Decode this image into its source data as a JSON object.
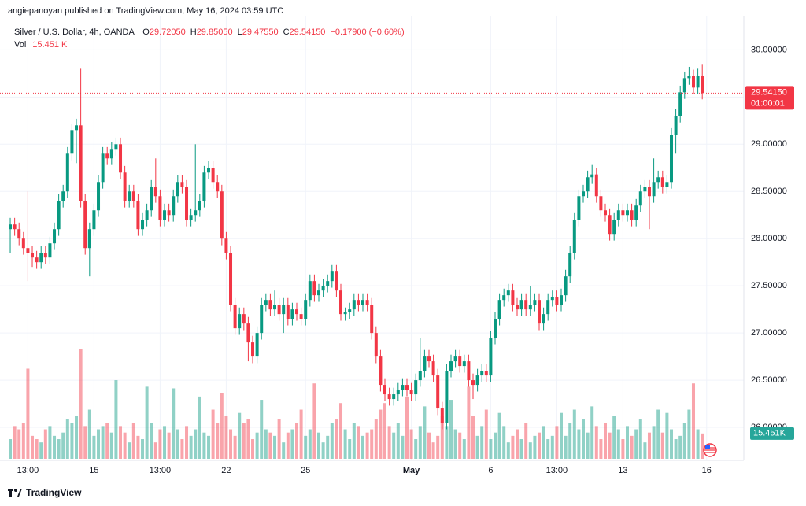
{
  "header": {
    "byline": "angiepanoyan published on TradingView.com, May 16, 2024 03:59 UTC",
    "symbol": "Silver / U.S. Dollar, 4h, OANDA",
    "ohlc": [
      {
        "key": "O",
        "value": "29.72050"
      },
      {
        "key": "H",
        "value": "29.85050"
      },
      {
        "key": "L",
        "value": "29.47550"
      },
      {
        "key": "C",
        "value": "29.54150"
      }
    ],
    "change": "−0.17900 (−0.60%)",
    "vol_label": "Vol",
    "vol_value": "15.451 K"
  },
  "chart_data": {
    "type": "candlestick",
    "up_color": "#089981",
    "down_color": "#f23645",
    "grid": true,
    "open": [
      28.1,
      28.15,
      28.1,
      28.0,
      27.9,
      27.85,
      27.8,
      27.75,
      27.85,
      27.8,
      27.95,
      28.1,
      28.4,
      28.5,
      28.9,
      29.15,
      29.2,
      28.4,
      27.9,
      28.1,
      28.3,
      28.6,
      28.9,
      28.85,
      28.95,
      29.0,
      28.7,
      28.4,
      28.5,
      28.4,
      28.1,
      28.2,
      28.3,
      28.55,
      28.45,
      28.2,
      28.3,
      28.25,
      28.45,
      28.6,
      28.55,
      28.2,
      28.25,
      28.3,
      28.4,
      28.7,
      28.75,
      28.6,
      28.5,
      28.0,
      27.85,
      27.3,
      27.05,
      27.2,
      27.1,
      26.9,
      26.75,
      27.0,
      27.3,
      27.35,
      27.25,
      27.3,
      27.2,
      27.3,
      27.15,
      27.25,
      27.2,
      27.15,
      27.35,
      27.55,
      27.4,
      27.45,
      27.5,
      27.55,
      27.65,
      27.45,
      27.2,
      27.22,
      27.25,
      27.35,
      27.3,
      27.35,
      27.3,
      27.0,
      26.75,
      26.45,
      26.35,
      26.3,
      26.35,
      26.4,
      26.45,
      26.4,
      26.35,
      26.5,
      26.6,
      26.75,
      26.7,
      26.55,
      26.2,
      26.05,
      26.6,
      26.7,
      26.75,
      26.65,
      26.7,
      26.5,
      26.45,
      26.55,
      26.6,
      26.55,
      26.95,
      27.15,
      27.35,
      27.4,
      27.45,
      27.3,
      27.25,
      27.35,
      27.25,
      27.3,
      27.35,
      27.1,
      27.2,
      27.35,
      27.38,
      27.3,
      27.4,
      27.6,
      27.85,
      28.2,
      28.45,
      28.5,
      28.65,
      28.68,
      28.45,
      28.3,
      28.25,
      28.05,
      28.2,
      28.3,
      28.25,
      28.3,
      28.2,
      28.35,
      28.5,
      28.55,
      28.45,
      28.6,
      28.65,
      28.55,
      28.6,
      29.1,
      29.3,
      29.55,
      29.7,
      29.72,
      29.6,
      29.7205
    ],
    "high": [
      28.22,
      28.22,
      28.17,
      28.07,
      28.5,
      27.92,
      27.87,
      27.92,
      27.92,
      28.02,
      28.17,
      28.47,
      28.57,
      28.97,
      29.22,
      29.27,
      29.8,
      28.47,
      28.17,
      28.37,
      28.67,
      28.97,
      28.97,
      29.02,
      29.07,
      29.07,
      28.77,
      28.57,
      28.57,
      28.47,
      28.27,
      28.37,
      28.62,
      28.85,
      28.52,
      28.37,
      28.37,
      28.52,
      28.67,
      28.67,
      28.62,
      28.32,
      29.0,
      28.47,
      28.77,
      28.82,
      28.82,
      28.67,
      28.57,
      28.07,
      27.92,
      27.37,
      27.27,
      27.27,
      27.17,
      26.97,
      27.07,
      27.37,
      27.42,
      27.42,
      27.45,
      27.37,
      27.37,
      27.37,
      27.32,
      27.32,
      27.27,
      27.42,
      27.62,
      27.62,
      27.52,
      27.57,
      27.62,
      27.72,
      27.72,
      27.52,
      27.27,
      27.32,
      27.42,
      27.42,
      27.42,
      27.42,
      27.37,
      27.07,
      26.82,
      26.52,
      26.42,
      26.42,
      26.47,
      26.52,
      26.52,
      26.47,
      26.57,
      26.95,
      26.82,
      26.82,
      26.77,
      26.62,
      26.27,
      26.67,
      26.77,
      26.82,
      26.82,
      26.77,
      26.77,
      26.57,
      26.62,
      26.67,
      26.67,
      27.02,
      27.22,
      27.42,
      27.47,
      27.52,
      27.52,
      27.37,
      27.42,
      27.42,
      27.5,
      27.42,
      27.42,
      27.27,
      27.42,
      27.45,
      27.45,
      27.47,
      27.67,
      27.92,
      28.27,
      28.52,
      28.57,
      28.72,
      28.78,
      28.75,
      28.52,
      28.37,
      28.32,
      28.27,
      28.37,
      28.37,
      28.37,
      28.37,
      28.42,
      28.57,
      28.62,
      28.62,
      28.85,
      28.72,
      28.72,
      28.67,
      29.17,
      29.37,
      29.62,
      29.77,
      29.82,
      29.79,
      29.8,
      29.8505
    ],
    "low": [
      27.85,
      28.03,
      27.93,
      27.83,
      27.55,
      27.7,
      27.68,
      27.68,
      27.73,
      27.73,
      27.88,
      28.03,
      28.33,
      28.43,
      28.83,
      28.8,
      28.33,
      27.83,
      27.6,
      28.03,
      28.23,
      28.53,
      28.78,
      28.78,
      28.88,
      28.63,
      28.33,
      28.33,
      28.33,
      28.03,
      28.03,
      28.13,
      28.23,
      28.38,
      28.13,
      28.13,
      28.18,
      28.18,
      28.38,
      28.48,
      28.13,
      28.13,
      28.18,
      28.23,
      28.33,
      28.63,
      28.53,
      28.43,
      27.93,
      27.78,
      27.23,
      26.98,
      26.98,
      27.03,
      26.7,
      26.68,
      26.68,
      26.93,
      27.23,
      27.18,
      27.18,
      27.13,
      27.0,
      27.08,
      27.08,
      27.13,
      27.08,
      27.08,
      27.28,
      27.33,
      27.33,
      27.38,
      27.43,
      27.48,
      27.38,
      27.13,
      27.13,
      27.15,
      27.18,
      27.23,
      27.23,
      27.23,
      26.93,
      26.68,
      26.38,
      26.28,
      26.23,
      26.23,
      26.28,
      26.33,
      26.33,
      26.28,
      26.28,
      26.43,
      26.53,
      26.63,
      26.48,
      26.13,
      25.98,
      25.98,
      26.53,
      26.63,
      26.58,
      26.58,
      26.43,
      26.3,
      26.38,
      26.48,
      26.48,
      26.48,
      26.88,
      27.08,
      27.28,
      27.33,
      27.23,
      27.18,
      27.18,
      27.18,
      27.18,
      27.23,
      27.03,
      27.03,
      27.13,
      27.28,
      27.23,
      27.23,
      27.33,
      27.53,
      27.78,
      28.13,
      28.38,
      28.43,
      28.58,
      28.38,
      28.23,
      28.18,
      27.98,
      27.98,
      28.13,
      28.18,
      28.18,
      28.13,
      28.13,
      28.28,
      28.43,
      28.1,
      28.38,
      28.53,
      28.48,
      28.48,
      28.53,
      28.9,
      29.23,
      29.48,
      29.63,
      29.53,
      29.53,
      29.4755
    ],
    "close": [
      28.15,
      28.1,
      28.0,
      27.9,
      27.85,
      27.8,
      27.75,
      27.85,
      27.8,
      27.95,
      28.1,
      28.4,
      28.5,
      28.9,
      29.15,
      29.2,
      28.4,
      27.9,
      28.1,
      28.3,
      28.6,
      28.9,
      28.85,
      28.95,
      29.0,
      28.7,
      28.4,
      28.5,
      28.4,
      28.1,
      28.2,
      28.3,
      28.55,
      28.45,
      28.2,
      28.3,
      28.25,
      28.45,
      28.6,
      28.55,
      28.2,
      28.25,
      28.3,
      28.4,
      28.7,
      28.75,
      28.6,
      28.5,
      28.0,
      27.85,
      27.3,
      27.05,
      27.2,
      27.1,
      26.9,
      26.75,
      27.0,
      27.3,
      27.35,
      27.25,
      27.3,
      27.2,
      27.3,
      27.15,
      27.25,
      27.2,
      27.15,
      27.35,
      27.55,
      27.4,
      27.45,
      27.5,
      27.55,
      27.65,
      27.45,
      27.2,
      27.22,
      27.25,
      27.35,
      27.3,
      27.35,
      27.3,
      27.0,
      26.75,
      26.45,
      26.35,
      26.3,
      26.35,
      26.4,
      26.45,
      26.4,
      26.35,
      26.5,
      26.6,
      26.75,
      26.7,
      26.55,
      26.2,
      26.05,
      26.6,
      26.7,
      26.75,
      26.65,
      26.7,
      26.5,
      26.45,
      26.55,
      26.6,
      26.55,
      26.95,
      27.15,
      27.35,
      27.4,
      27.45,
      27.3,
      27.25,
      27.35,
      27.25,
      27.3,
      27.35,
      27.1,
      27.2,
      27.35,
      27.38,
      27.3,
      27.4,
      27.6,
      27.85,
      28.2,
      28.45,
      28.5,
      28.65,
      28.68,
      28.45,
      28.3,
      28.25,
      28.05,
      28.2,
      28.3,
      28.25,
      28.3,
      28.2,
      28.35,
      28.5,
      28.55,
      28.45,
      28.6,
      28.65,
      28.55,
      28.6,
      29.1,
      29.3,
      29.55,
      29.7,
      29.72,
      29.6,
      29.7205,
      29.5415
    ],
    "volume": [
      12,
      20,
      18,
      22,
      55,
      14,
      12,
      10,
      18,
      20,
      14,
      12,
      16,
      24,
      22,
      26,
      67,
      20,
      30,
      14,
      18,
      20,
      22,
      16,
      48,
      20,
      16,
      10,
      22,
      14,
      12,
      44,
      22,
      10,
      18,
      20,
      16,
      43,
      18,
      12,
      20,
      14,
      18,
      38,
      16,
      14,
      30,
      22,
      40,
      26,
      18,
      14,
      28,
      22,
      24,
      12,
      16,
      36,
      18,
      16,
      14,
      24,
      10,
      16,
      18,
      22,
      30,
      14,
      18,
      46,
      16,
      10,
      14,
      22,
      24,
      34,
      18,
      12,
      22,
      20,
      14,
      16,
      18,
      24,
      30,
      34,
      20,
      16,
      22,
      14,
      38,
      18,
      12,
      20,
      32,
      16,
      10,
      14,
      26,
      20,
      36,
      18,
      16,
      12,
      44,
      26,
      14,
      20,
      30,
      12,
      16,
      28,
      20,
      10,
      14,
      18,
      12,
      22,
      10,
      14,
      16,
      20,
      12,
      14,
      20,
      28,
      14,
      22,
      30,
      18,
      24,
      16,
      32,
      20,
      12,
      22,
      16,
      26,
      18,
      12,
      20,
      14,
      18,
      24,
      10,
      16,
      20,
      30,
      16,
      28,
      18,
      12,
      14,
      22,
      30,
      46,
      18,
      15.451
    ],
    "ylim": [
      25.65,
      30.32
    ],
    "vlim": [
      0,
      268
    ],
    "xlim": [
      -0.54,
      166.43
    ],
    "yticks": [
      {
        "value": 26,
        "label": "26.00000"
      },
      {
        "value": 26.5,
        "label": "26.50000"
      },
      {
        "value": 27,
        "label": "27.00000"
      },
      {
        "value": 27.5,
        "label": "27.50000"
      },
      {
        "value": 28,
        "label": "28.00000"
      },
      {
        "value": 28.5,
        "label": "28.50000"
      },
      {
        "value": 29,
        "label": "29.00000"
      },
      {
        "value": 29.5,
        "label": "29.50000"
      },
      {
        "value": 30,
        "label": "30.00000"
      }
    ],
    "xticks": [
      {
        "value": 4,
        "label": "13:00"
      },
      {
        "value": 19,
        "label": "15"
      },
      {
        "value": 34,
        "label": "13:00"
      },
      {
        "value": 49,
        "label": "22"
      },
      {
        "value": 67,
        "label": "25"
      },
      {
        "value": 91,
        "label": "May"
      },
      {
        "value": 109,
        "label": "6"
      },
      {
        "value": 124,
        "label": "13:00"
      },
      {
        "value": 139,
        "label": "13"
      },
      {
        "value": 158,
        "label": "16"
      }
    ],
    "last_price_label": "29.54150",
    "countdown": "01:00:01",
    "last_volume_label": "15.451K"
  },
  "footer": {
    "brand": "TradingView"
  }
}
